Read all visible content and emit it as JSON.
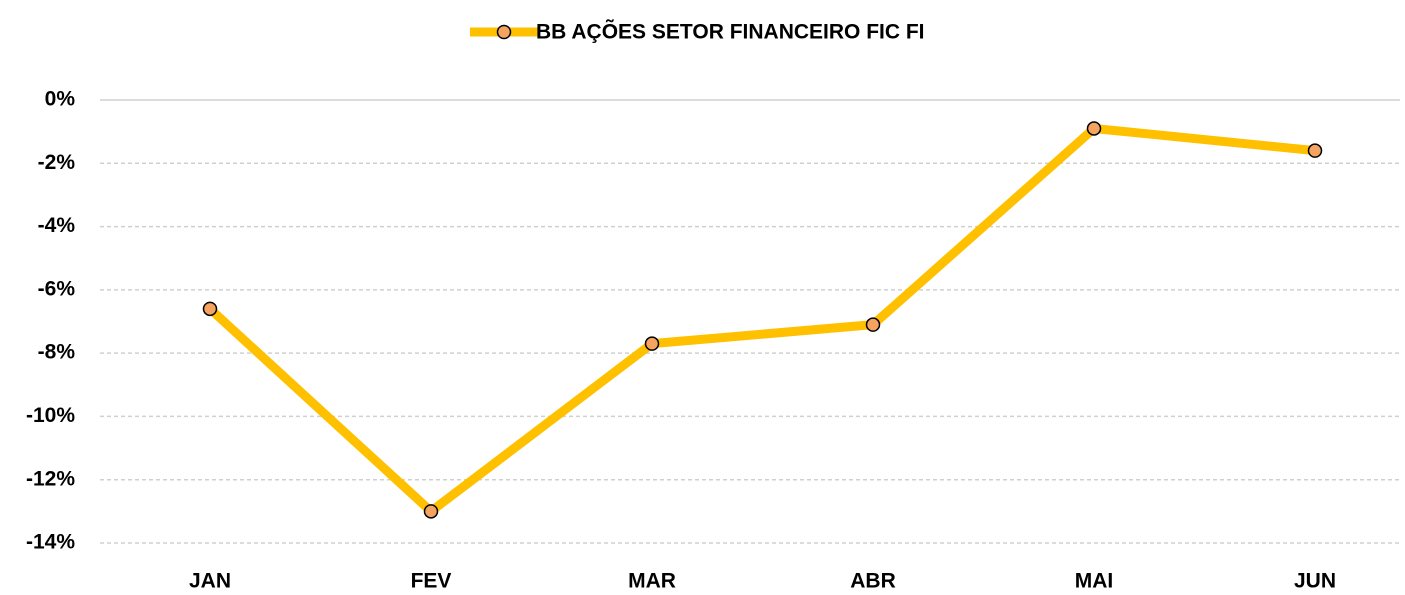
{
  "chart_data": {
    "type": "line",
    "categories": [
      "JAN",
      "FEV",
      "MAR",
      "ABR",
      "MAI",
      "JUN"
    ],
    "series": [
      {
        "name": "BB AÇÕES SETOR FINANCEIRO FIC FI",
        "color": "#FFC000",
        "marker_color": "#F4A460",
        "values": [
          -6.6,
          -13.0,
          -7.7,
          -7.1,
          -0.9,
          -1.6
        ]
      }
    ],
    "ylim": [
      -14,
      0
    ],
    "yticks": [
      {
        "value": 0,
        "label": "0%"
      },
      {
        "value": -2,
        "label": "-2%"
      },
      {
        "value": -4,
        "label": "-4%"
      },
      {
        "value": -6,
        "label": "-6%"
      },
      {
        "value": -8,
        "label": "-8%"
      },
      {
        "value": -10,
        "label": "-10%"
      },
      {
        "value": -12,
        "label": "-12%"
      },
      {
        "value": -14,
        "label": "-14%"
      }
    ],
    "grid": true,
    "legend": "top"
  }
}
